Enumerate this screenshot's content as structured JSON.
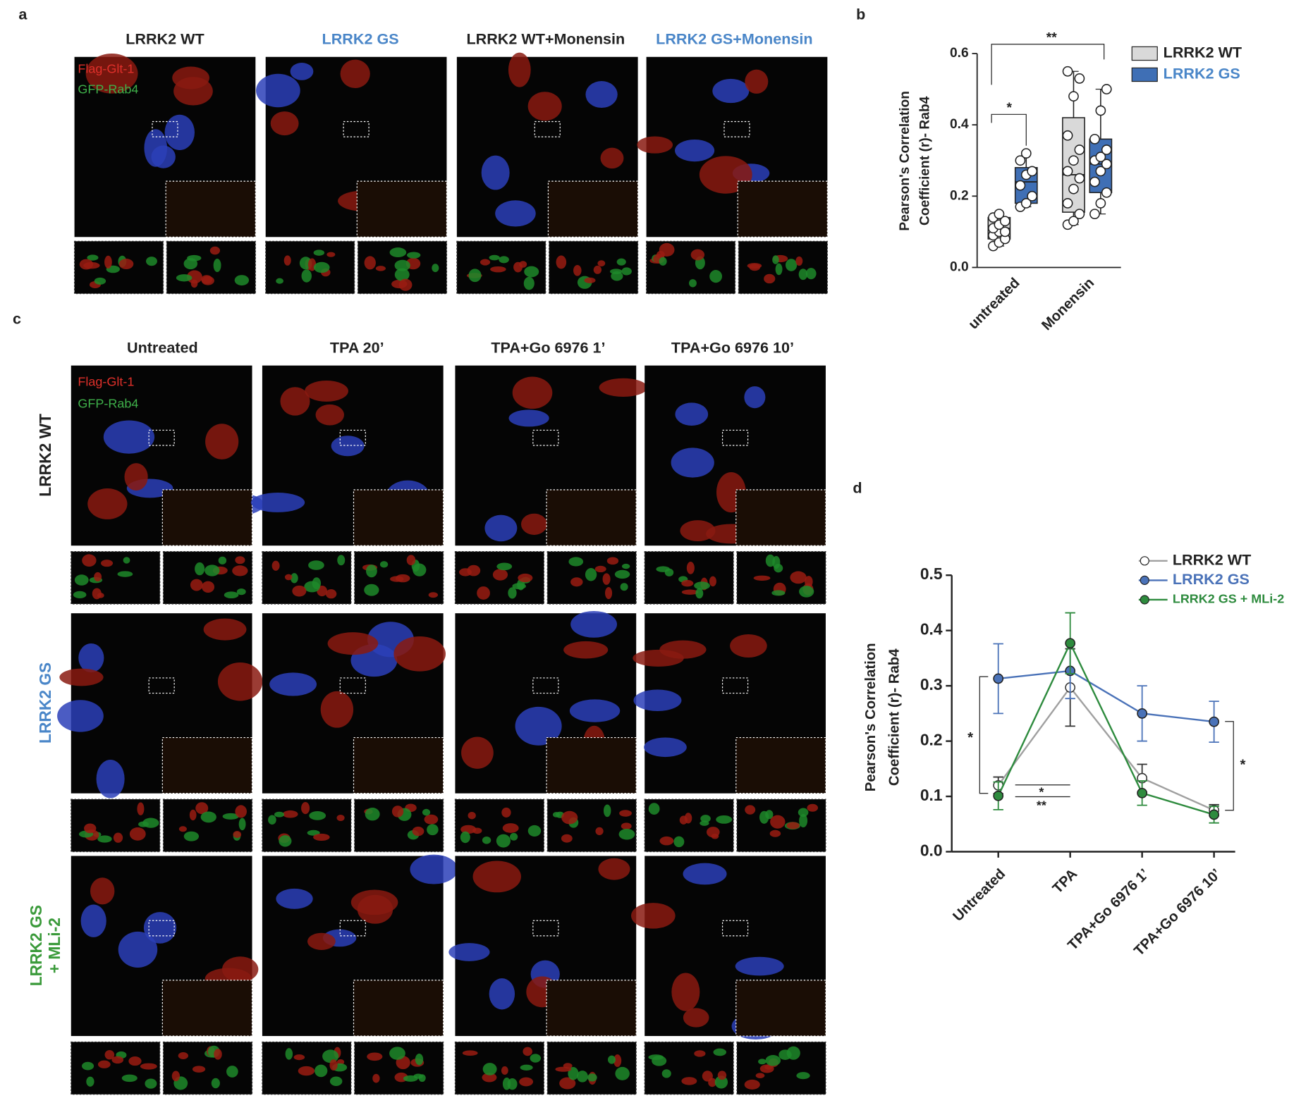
{
  "panel_labels": [
    "a",
    "b",
    "c",
    "d"
  ],
  "panel_a": {
    "columns": [
      {
        "text": "LRRK2 WT",
        "color": "#222222"
      },
      {
        "text": "LRRK2 GS",
        "color": "#4a86c8"
      },
      {
        "text": "LRRK2 WT+Monensin",
        "color": "#222222"
      },
      {
        "text": "LRRK2 GS+Monensin",
        "color": "#4a86c8"
      }
    ],
    "channels": [
      {
        "text": "Flag-Glt-1",
        "color": "#e0302a"
      },
      {
        "text": "GFP-Rab4",
        "color": "#3fb14a"
      }
    ]
  },
  "panel_c": {
    "columns": [
      "Untreated",
      "TPA 20’",
      "TPA+Go 6976 1’",
      "TPA+Go 6976 10’"
    ],
    "rows": [
      {
        "lines": [
          "LRRK2 WT"
        ],
        "color": "#222222"
      },
      {
        "lines": [
          "LRRK2 GS"
        ],
        "color": "#4a86c8"
      },
      {
        "lines": [
          "LRRK2 GS",
          "+ MLi-2"
        ],
        "color": "#3a9a3a"
      }
    ],
    "channels": [
      {
        "text": "Flag-Glt-1",
        "color": "#e0302a"
      },
      {
        "text": "GFP-Rab4",
        "color": "#3fb14a"
      }
    ]
  },
  "chart_data": [
    {
      "type": "box",
      "ylabel": [
        "Pearson's Correlation",
        "Coefficient (r)- Rab4"
      ],
      "categories": [
        "untreated",
        "Monensin"
      ],
      "ylim": [
        0,
        0.6
      ],
      "yticks": [
        {
          "value": 0,
          "label": "0.0"
        },
        0.2,
        0.4,
        0.6
      ],
      "legend": "upper right",
      "series": [
        {
          "name": "LRRK2 WT",
          "color": "#d9d9d9",
          "min": [
            0.06,
            0.12
          ],
          "q1": [
            0.08,
            0.155
          ],
          "median": [
            0.11,
            0.26
          ],
          "q3": [
            0.14,
            0.42
          ],
          "max": [
            0.15,
            0.55
          ],
          "points": [
            [
              0.06,
              0.07,
              0.08,
              0.09,
              0.1,
              0.1,
              0.11,
              0.12,
              0.13,
              0.14,
              0.15
            ],
            [
              0.12,
              0.13,
              0.15,
              0.18,
              0.22,
              0.25,
              0.27,
              0.3,
              0.33,
              0.37,
              0.48,
              0.53,
              0.55
            ]
          ]
        },
        {
          "name": "LRRK2 GS",
          "color": "#3f6fb5",
          "min": [
            0.17,
            0.15
          ],
          "q1": [
            0.18,
            0.21
          ],
          "median": [
            0.24,
            0.29
          ],
          "q3": [
            0.28,
            0.36
          ],
          "max": [
            0.32,
            0.5
          ],
          "points": [
            [
              0.17,
              0.18,
              0.2,
              0.23,
              0.26,
              0.27,
              0.3,
              0.32
            ],
            [
              0.15,
              0.18,
              0.21,
              0.24,
              0.27,
              0.29,
              0.3,
              0.31,
              0.33,
              0.36,
              0.44,
              0.5
            ]
          ]
        }
      ],
      "annotations": [
        "*",
        "**"
      ]
    },
    {
      "type": "line",
      "ylabel": [
        "Pearson's Correlation",
        "Coefficient (r)- Rab4"
      ],
      "categories": [
        "Untreated",
        "TPA",
        "TPA+Go 6976 1’",
        "TPA+Go 6976 10’"
      ],
      "ylim": [
        0,
        0.5
      ],
      "yticks": [
        {
          "value": 0,
          "label": "0.0"
        },
        0.1,
        0.2,
        0.3,
        0.4,
        0.5
      ],
      "legend": "upper right",
      "series": [
        {
          "name": "LRRK2 WT",
          "color": "#a0a0a0",
          "marker": "#ffffff",
          "values": [
            0.12,
            0.297,
            0.133,
            0.075
          ],
          "errors": [
            0.015,
            0.07,
            0.025,
            0.01
          ]
        },
        {
          "name": "LRRK2 GS",
          "color": "#4a72b8",
          "marker": "#4a72b8",
          "values": [
            0.313,
            0.327,
            0.25,
            0.235
          ],
          "errors": [
            0.063,
            0.05,
            0.05,
            0.037
          ]
        },
        {
          "name": "LRRK2 GS + MLi-2",
          "color": "#2e8b3e",
          "marker": "#2e8b3e",
          "values": [
            0.101,
            0.377,
            0.106,
            0.067
          ],
          "errors": [
            0.025,
            0.055,
            0.022,
            0.015
          ]
        }
      ],
      "annotations": [
        "*",
        "*",
        "**",
        "*"
      ]
    }
  ]
}
